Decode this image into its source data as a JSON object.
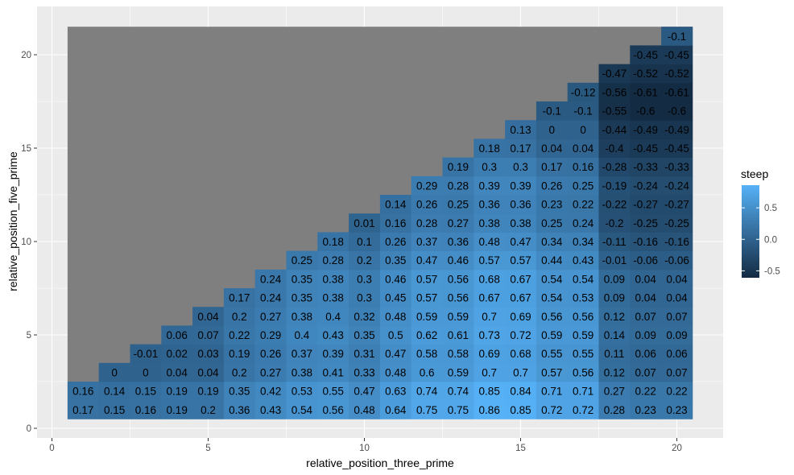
{
  "chart_data": {
    "type": "heatmap",
    "xlabel": "relative_position_three_prime",
    "ylabel": "relative_position_five_prime",
    "xlim": [
      0,
      20
    ],
    "ylim": [
      0,
      21
    ],
    "x_ticks": [
      0,
      5,
      10,
      15,
      20
    ],
    "y_ticks": [
      0,
      5,
      10,
      15,
      20
    ],
    "grid": true,
    "panel_background": "#ebebeb",
    "na_color": "#7f7f7f",
    "color_scale": {
      "title": "steep",
      "low": "#132b43",
      "high": "#56b1f7",
      "domain": [
        -0.61,
        0.86
      ],
      "breaks": [
        0.5,
        0.0,
        -0.5
      ],
      "break_labels": [
        "0.5",
        "0.0",
        "-0.5"
      ]
    },
    "legend_position": "right",
    "rows": [
      {
        "y": 1,
        "values": [
          0.17,
          0.15,
          0.16,
          0.19,
          0.2,
          0.36,
          0.43,
          0.54,
          0.56,
          0.48,
          0.64,
          0.75,
          0.75,
          0.86,
          0.85,
          0.72,
          0.72,
          0.28,
          0.23,
          0.23
        ]
      },
      {
        "y": 2,
        "values": [
          0.16,
          0.14,
          0.15,
          0.19,
          0.19,
          0.35,
          0.42,
          0.53,
          0.55,
          0.47,
          0.63,
          0.74,
          0.74,
          0.85,
          0.84,
          0.71,
          0.71,
          0.27,
          0.22,
          0.22
        ]
      },
      {
        "y": 3,
        "values": [
          null,
          0,
          0,
          0.04,
          0.04,
          0.2,
          0.27,
          0.38,
          0.41,
          0.33,
          0.48,
          0.6,
          0.59,
          0.7,
          0.7,
          0.57,
          0.56,
          0.12,
          0.07,
          0.07
        ]
      },
      {
        "y": 4,
        "values": [
          null,
          null,
          -0.01,
          0.02,
          0.03,
          0.19,
          0.26,
          0.37,
          0.39,
          0.31,
          0.47,
          0.58,
          0.58,
          0.69,
          0.68,
          0.55,
          0.55,
          0.11,
          0.06,
          0.06
        ]
      },
      {
        "y": 5,
        "values": [
          null,
          null,
          null,
          0.06,
          0.07,
          0.22,
          0.29,
          0.4,
          0.43,
          0.35,
          0.5,
          0.62,
          0.61,
          0.73,
          0.72,
          0.59,
          0.59,
          0.14,
          0.09,
          0.09
        ]
      },
      {
        "y": 6,
        "values": [
          null,
          null,
          null,
          null,
          0.04,
          0.2,
          0.27,
          0.38,
          0.4,
          0.32,
          0.48,
          0.59,
          0.59,
          0.7,
          0.69,
          0.56,
          0.56,
          0.12,
          0.07,
          0.07
        ]
      },
      {
        "y": 7,
        "values": [
          null,
          null,
          null,
          null,
          null,
          0.17,
          0.24,
          0.35,
          0.38,
          0.3,
          0.45,
          0.57,
          0.56,
          0.67,
          0.67,
          0.54,
          0.53,
          0.09,
          0.04,
          0.04
        ]
      },
      {
        "y": 8,
        "values": [
          null,
          null,
          null,
          null,
          null,
          null,
          0.24,
          0.35,
          0.38,
          0.3,
          0.46,
          0.57,
          0.56,
          0.68,
          0.67,
          0.54,
          0.54,
          0.09,
          0.04,
          0.04
        ]
      },
      {
        "y": 9,
        "values": [
          null,
          null,
          null,
          null,
          null,
          null,
          null,
          0.25,
          0.28,
          0.2,
          0.35,
          0.47,
          0.46,
          0.57,
          0.57,
          0.44,
          0.43,
          -0.01,
          -0.06,
          -0.06
        ]
      },
      {
        "y": 10,
        "values": [
          null,
          null,
          null,
          null,
          null,
          null,
          null,
          null,
          0.18,
          0.1,
          0.26,
          0.37,
          0.36,
          0.48,
          0.47,
          0.34,
          0.34,
          -0.11,
          -0.16,
          -0.16
        ]
      },
      {
        "y": 11,
        "values": [
          null,
          null,
          null,
          null,
          null,
          null,
          null,
          null,
          null,
          0.01,
          0.16,
          0.28,
          0.27,
          0.38,
          0.38,
          0.25,
          0.24,
          -0.2,
          -0.25,
          -0.25
        ]
      },
      {
        "y": 12,
        "values": [
          null,
          null,
          null,
          null,
          null,
          null,
          null,
          null,
          null,
          null,
          0.14,
          0.26,
          0.25,
          0.36,
          0.36,
          0.23,
          0.22,
          -0.22,
          -0.27,
          -0.27
        ]
      },
      {
        "y": 13,
        "values": [
          null,
          null,
          null,
          null,
          null,
          null,
          null,
          null,
          null,
          null,
          null,
          0.29,
          0.28,
          0.39,
          0.39,
          0.26,
          0.25,
          -0.19,
          -0.24,
          -0.24
        ]
      },
      {
        "y": 14,
        "values": [
          null,
          null,
          null,
          null,
          null,
          null,
          null,
          null,
          null,
          null,
          null,
          null,
          0.19,
          0.3,
          0.3,
          0.17,
          0.16,
          -0.28,
          -0.33,
          -0.33
        ]
      },
      {
        "y": 15,
        "values": [
          null,
          null,
          null,
          null,
          null,
          null,
          null,
          null,
          null,
          null,
          null,
          null,
          null,
          0.18,
          0.17,
          0.04,
          0.04,
          -0.4,
          -0.45,
          -0.45
        ]
      },
      {
        "y": 16,
        "values": [
          null,
          null,
          null,
          null,
          null,
          null,
          null,
          null,
          null,
          null,
          null,
          null,
          null,
          null,
          0.13,
          0,
          0,
          -0.44,
          -0.49,
          -0.49
        ]
      },
      {
        "y": 17,
        "values": [
          null,
          null,
          null,
          null,
          null,
          null,
          null,
          null,
          null,
          null,
          null,
          null,
          null,
          null,
          null,
          -0.1,
          -0.1,
          -0.55,
          -0.6,
          -0.6
        ]
      },
      {
        "y": 18,
        "values": [
          null,
          null,
          null,
          null,
          null,
          null,
          null,
          null,
          null,
          null,
          null,
          null,
          null,
          null,
          null,
          null,
          -0.12,
          -0.56,
          -0.61,
          -0.61
        ]
      },
      {
        "y": 19,
        "values": [
          null,
          null,
          null,
          null,
          null,
          null,
          null,
          null,
          null,
          null,
          null,
          null,
          null,
          null,
          null,
          null,
          null,
          -0.47,
          -0.52,
          -0.52
        ]
      },
      {
        "y": 20,
        "values": [
          null,
          null,
          null,
          null,
          null,
          null,
          null,
          null,
          null,
          null,
          null,
          null,
          null,
          null,
          null,
          null,
          null,
          null,
          -0.45,
          -0.45
        ]
      },
      {
        "y": 21,
        "values": [
          null,
          null,
          null,
          null,
          null,
          null,
          null,
          null,
          null,
          null,
          null,
          null,
          null,
          null,
          null,
          null,
          null,
          null,
          null,
          -0.1
        ]
      }
    ]
  }
}
